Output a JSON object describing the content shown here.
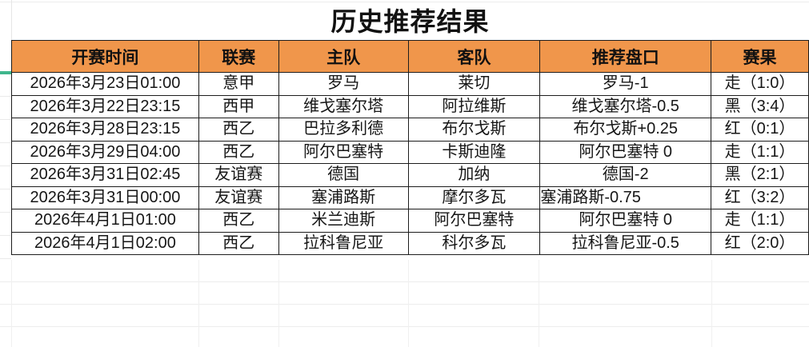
{
  "title": "历史推荐结果",
  "columns": [
    {
      "key": "time",
      "label": "开赛时间"
    },
    {
      "key": "league",
      "label": "联赛"
    },
    {
      "key": "home",
      "label": "主队"
    },
    {
      "key": "away",
      "label": "客队"
    },
    {
      "key": "handicap",
      "label": "推荐盘口"
    },
    {
      "key": "result",
      "label": "赛果"
    }
  ],
  "rows": [
    {
      "time": "2026年3月23日01:00",
      "league": "意甲",
      "home": "罗马",
      "away": "莱切",
      "handicap": "罗马-1",
      "result": "走（1:0）",
      "result_status": "push"
    },
    {
      "time": "2026年3月22日23:15",
      "league": "西甲",
      "home": "维戈塞尔塔",
      "away": "阿拉维斯",
      "handicap": "维戈塞尔塔-0.5",
      "result": "黑（3:4）",
      "result_status": "loss"
    },
    {
      "time": "2026年3月28日23:15",
      "league": "西乙",
      "home": "巴拉多利德",
      "away": "布尔戈斯",
      "handicap": "布尔戈斯+0.25",
      "result": "红（0:1）",
      "result_status": "win"
    },
    {
      "time": "2026年3月29日04:00",
      "league": "西乙",
      "home": "阿尔巴塞特",
      "away": "卡斯迪隆",
      "handicap": "阿尔巴塞特 0",
      "result": "走（1:1）",
      "result_status": "push"
    },
    {
      "time": "2026年3月31日02:45",
      "league": "友谊赛",
      "home": "德国",
      "away": "加纳",
      "handicap": "德国-2",
      "result": "黑（2:1）",
      "result_status": "loss"
    },
    {
      "time": "2026年3月31日00:00",
      "league": "友谊赛",
      "home": "塞浦路斯",
      "away": "摩尔多瓦",
      "handicap": "塞浦路斯-0.75",
      "result": "红（3:2）",
      "result_status": "win",
      "handicap_align": "left"
    },
    {
      "time": "2026年4月1日01:00",
      "league": "西乙",
      "home": "米兰迪斯",
      "away": "阿尔巴塞特",
      "handicap": "阿尔巴塞特 0",
      "result": "走（1:1）",
      "result_status": "push"
    },
    {
      "time": "2026年4月1日02:00",
      "league": "西乙",
      "home": "拉科鲁尼亚",
      "away": "科尔多瓦",
      "handicap": "拉科鲁尼亚-0.5",
      "result": "红（2:0）",
      "result_status": "win"
    }
  ],
  "colors": {
    "header_bg": "#F0964B",
    "result_push": "#EFAD4D",
    "result_win": "#EC6A61",
    "result_loss": "#1A1A1A",
    "freeze_indicator": "#3FB68C",
    "border_dark": "#1D1D1D",
    "grid_light": "#EDEDED",
    "text_main": "#161616"
  }
}
